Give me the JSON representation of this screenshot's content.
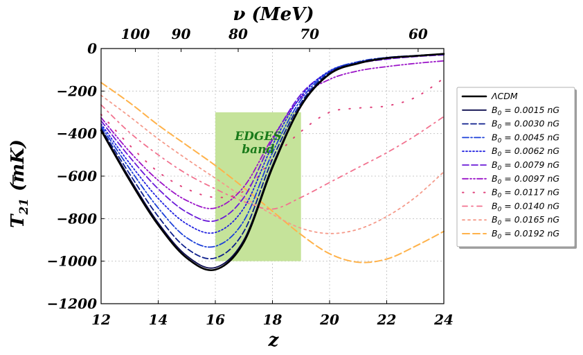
{
  "chart_data": {
    "type": "line",
    "xlabel": "z",
    "ylabel_main": "T",
    "ylabel_sub": "21",
    "ylabel_units": "(mK)",
    "top_xlabel": "ν (MeV)",
    "xlim": [
      12,
      24
    ],
    "ylim": [
      -1200,
      0
    ],
    "x_ticks": [
      12,
      14,
      16,
      18,
      20,
      22,
      24
    ],
    "y_ticks": [
      0,
      -200,
      -400,
      -600,
      -800,
      -1000,
      -1200
    ],
    "top_ticks": [
      {
        "label": "100",
        "z": 13.2
      },
      {
        "label": "90",
        "z": 14.8
      },
      {
        "label": "80",
        "z": 16.8
      },
      {
        "label": "70",
        "z": 19.3
      },
      {
        "label": "60",
        "z": 23.1
      }
    ],
    "grid": true,
    "legend_position": "right",
    "band": {
      "label_line1": "EDGES",
      "label_line2": "band",
      "x_range": [
        16,
        19
      ],
      "y_range": [
        -1000,
        -300
      ],
      "color": "#c5e39a"
    },
    "x": [
      12,
      13,
      14,
      15,
      16,
      17,
      18,
      19,
      20,
      21,
      22,
      23,
      24
    ],
    "series": [
      {
        "name": "ΛCDM",
        "color": "#000000",
        "dash": "",
        "width": 2.6,
        "values": [
          -385,
          -620,
          -830,
          -985,
          -1040,
          -910,
          -560,
          -270,
          -120,
          -70,
          -45,
          -35,
          -25
        ]
      },
      {
        "name": "B0 = 0.0015 nG",
        "legend_main": "B",
        "legend_sub": "0",
        "legend_rest": " = 0.0015 nG",
        "color": "#0b0b4d",
        "dash": "",
        "width": 1.8,
        "values": [
          -380,
          -610,
          -820,
          -975,
          -1030,
          -900,
          -550,
          -265,
          -118,
          -68,
          -44,
          -34,
          -25
        ]
      },
      {
        "name": "B0 = 0.0030 nG",
        "legend_main": "B",
        "legend_sub": "0",
        "legend_rest": " = 0.0030 nG",
        "color": "#0c1e8c",
        "dash": "8,4",
        "width": 1.8,
        "values": [
          -375,
          -590,
          -790,
          -940,
          -985,
          -860,
          -520,
          -255,
          -113,
          -65,
          -43,
          -34,
          -25
        ]
      },
      {
        "name": "B0 = 0.0045 nG",
        "legend_main": "B",
        "legend_sub": "0",
        "legend_rest": " = 0.0045 nG",
        "color": "#1c40d8",
        "dash": "9,3,2,3",
        "width": 1.8,
        "values": [
          -365,
          -565,
          -750,
          -890,
          -930,
          -810,
          -490,
          -240,
          -108,
          -62,
          -42,
          -33,
          -25
        ]
      },
      {
        "name": "B0 = 0.0062 nG",
        "legend_main": "B",
        "legend_sub": "0",
        "legend_rest": " = 0.0062 nG",
        "color": "#2020e0",
        "dash": "2,3",
        "width": 1.8,
        "values": [
          -355,
          -540,
          -705,
          -825,
          -865,
          -750,
          -455,
          -225,
          -105,
          -65,
          -45,
          -35,
          -27
        ]
      },
      {
        "name": "B0 = 0.0079 nG",
        "legend_main": "B",
        "legend_sub": "0",
        "legend_rest": " = 0.0079 nG",
        "color": "#6a1ad8",
        "dash": "9,4",
        "width": 1.8,
        "values": [
          -340,
          -510,
          -660,
          -770,
          -810,
          -700,
          -430,
          -215,
          -110,
          -70,
          -50,
          -38,
          -30
        ]
      },
      {
        "name": "B0 = 0.0097 nG",
        "legend_main": "B",
        "legend_sub": "0",
        "legend_rest": " = 0.0097 nG",
        "color": "#9b14c8",
        "dash": "8,3,2,3,2,3",
        "width": 1.8,
        "values": [
          -325,
          -485,
          -620,
          -715,
          -750,
          -650,
          -420,
          -230,
          -145,
          -105,
          -85,
          -70,
          -58
        ]
      },
      {
        "name": "B0 = 0.0117 nG",
        "legend_main": "B",
        "legend_sub": "0",
        "legend_rest": " = 0.0117 nG",
        "color": "#e0407a",
        "dash": "1.5,14",
        "width": 2.0,
        "values": [
          -310,
          -455,
          -580,
          -660,
          -700,
          -670,
          -520,
          -390,
          -300,
          -280,
          -270,
          -230,
          -140
        ]
      },
      {
        "name": "B0 = 0.0140 nG",
        "legend_main": "B",
        "legend_sub": "0",
        "legend_rest": " = 0.0140 nG",
        "color": "#f2728f",
        "dash": "7,6,2,6",
        "width": 1.8,
        "values": [
          -265,
          -395,
          -500,
          -590,
          -660,
          -720,
          -755,
          -700,
          -630,
          -560,
          -490,
          -410,
          -320
        ]
      },
      {
        "name": "B0 = 0.0165 nG",
        "legend_main": "B",
        "legend_sub": "0",
        "legend_rest": " = 0.0165 nG",
        "color": "#f59a8a",
        "dash": "3,5",
        "width": 1.8,
        "values": [
          -220,
          -320,
          -425,
          -520,
          -610,
          -700,
          -780,
          -845,
          -870,
          -850,
          -790,
          -700,
          -580
        ]
      },
      {
        "name": "B0 = 0.0192 nG",
        "legend_main": "B",
        "legend_sub": "0",
        "legend_rest": " = 0.0192 nG",
        "color": "#ffb24a",
        "dash": "10,5",
        "width": 2.0,
        "values": [
          -160,
          -255,
          -360,
          -455,
          -550,
          -655,
          -765,
          -875,
          -965,
          -1005,
          -990,
          -930,
          -860
        ]
      }
    ]
  }
}
